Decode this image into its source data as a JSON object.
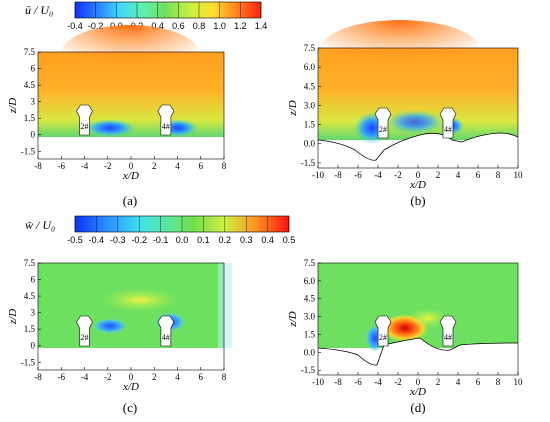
{
  "colorbars": [
    {
      "title": "ū / U₀",
      "ticks": [
        "-0.4",
        "-0.2",
        "0.0",
        "0.2",
        "0.4",
        "0.6",
        "0.8",
        "1.0",
        "1.2",
        "1.4"
      ],
      "range": [
        -0.4,
        1.4
      ]
    },
    {
      "title": "w̄ / U₀",
      "ticks": [
        "-0.5",
        "-0.4",
        "-0.3",
        "-0.2",
        "-0.1",
        "0.0",
        "0.1",
        "0.2",
        "0.3",
        "0.4",
        "0.5"
      ],
      "range": [
        -0.5,
        0.5
      ]
    }
  ],
  "chart_data": [
    {
      "type": "heatmap",
      "caption": "(a)",
      "field": "u",
      "xlabel": "x/D",
      "ylabel": "z/D",
      "xlim": [
        -8,
        8
      ],
      "ylim": [
        -2.2,
        7.5
      ],
      "xticks": [
        "-8",
        "-6",
        "-4",
        "-2",
        "0",
        "2",
        "4",
        "6",
        "8"
      ],
      "yticks": [
        "7.5",
        "6",
        "4.5",
        "3",
        "1.5",
        "0",
        "-1.5"
      ],
      "pier_markers": [
        "2#",
        "4#"
      ],
      "bed": "flat"
    },
    {
      "type": "heatmap",
      "caption": "(b)",
      "field": "u",
      "xlabel": "x/D",
      "ylabel": "z/D",
      "xlim": [
        -10,
        10
      ],
      "ylim": [
        -1.9,
        7.5
      ],
      "xticks": [
        "-10",
        "-8",
        "-6",
        "-4",
        "-2",
        "0",
        "2",
        "4",
        "6",
        "8",
        "10"
      ],
      "yticks": [
        "7.5",
        "6.0",
        "4.5",
        "3.0",
        "1.5",
        "0.0",
        "-1.5"
      ],
      "pier_markers": [
        "2#",
        "4#"
      ],
      "bed": "scoured"
    },
    {
      "type": "heatmap",
      "caption": "(c)",
      "field": "w",
      "xlabel": "x/D",
      "ylabel": "z/D",
      "xlim": [
        -8,
        8
      ],
      "ylim": [
        -2.2,
        7.5
      ],
      "xticks": [
        "-8",
        "-6",
        "-4",
        "-2",
        "0",
        "2",
        "4",
        "6",
        "8"
      ],
      "yticks": [
        "7.5",
        "6",
        "4.5",
        "3",
        "1.5",
        "0",
        "-1.5"
      ],
      "pier_markers": [
        "2#",
        "4#"
      ],
      "bed": "flat"
    },
    {
      "type": "heatmap",
      "caption": "(d)",
      "field": "w",
      "xlabel": "x/D",
      "ylabel": "z/D",
      "xlim": [
        -10,
        10
      ],
      "ylim": [
        -1.9,
        7.5
      ],
      "xticks": [
        "-10",
        "-8",
        "-6",
        "-4",
        "-2",
        "0",
        "2",
        "4",
        "6",
        "8",
        "10"
      ],
      "yticks": [
        "7.5",
        "6.0",
        "4.5",
        "3.0",
        "1.5",
        "0.0",
        "-1.5"
      ],
      "pier_markers": [
        "2#",
        "4#"
      ],
      "bed": "scoured"
    }
  ]
}
